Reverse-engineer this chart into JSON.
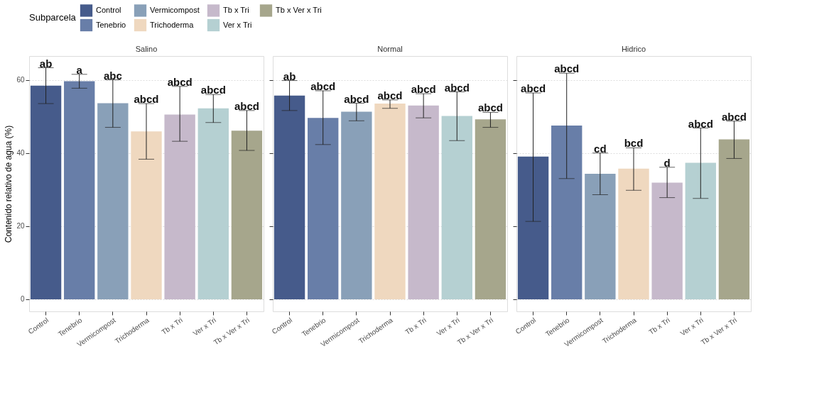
{
  "chart_data": [
    {
      "type": "bar",
      "title": "Salino",
      "ylabel": "Contenido relativo de agua (%)",
      "legend_title": "Subparcela",
      "legend": "top",
      "categories": [
        "Control",
        "Tenebrio",
        "Vermicompost",
        "Trichoderma",
        "Tb x Tri",
        "Ver x Tri",
        "Tb x Ver x Tri"
      ],
      "series": [
        {
          "name": "Control",
          "color": "#465b8b",
          "values": [
            58.4,
            null,
            null,
            null,
            null,
            null,
            null
          ],
          "errors": [
            [
              53.5,
              63.3
            ],
            null,
            null,
            null,
            null,
            null,
            null
          ]
        },
        {
          "name": "Tenebrio",
          "color": "#687ea8",
          "values": [
            null,
            59.6,
            null,
            null,
            null,
            null,
            null
          ],
          "errors": [
            null,
            [
              57.7,
              61.5
            ],
            null,
            null,
            null,
            null,
            null
          ]
        },
        {
          "name": "Vermicompost",
          "color": "#89a0b8",
          "values": [
            null,
            null,
            53.6,
            null,
            null,
            null,
            null
          ],
          "errors": [
            null,
            null,
            [
              47.0,
              60.0
            ],
            null,
            null,
            null,
            null
          ]
        },
        {
          "name": "Trichoderma",
          "color": "#efd8bf",
          "values": [
            null,
            null,
            null,
            45.9,
            null,
            null,
            null
          ],
          "errors": [
            null,
            null,
            null,
            [
              38.3,
              53.5
            ],
            null,
            null,
            null
          ]
        },
        {
          "name": "Tb x Tri",
          "color": "#c6b9cb",
          "values": [
            null,
            null,
            null,
            null,
            50.5,
            null,
            null
          ],
          "errors": [
            null,
            null,
            null,
            null,
            [
              43.2,
              58.2
            ],
            null,
            null
          ]
        },
        {
          "name": "Ver x Tri",
          "color": "#b5d0d2",
          "values": [
            null,
            null,
            null,
            null,
            null,
            52.2,
            null
          ],
          "errors": [
            null,
            null,
            null,
            null,
            null,
            [
              48.3,
              56.0
            ],
            null
          ]
        },
        {
          "name": "Tb x Ver x Tri",
          "color": "#a6a68c",
          "values": [
            null,
            null,
            null,
            null,
            null,
            null,
            46.1
          ],
          "errors": [
            null,
            null,
            null,
            null,
            null,
            null,
            [
              40.7,
              51.6
            ]
          ]
        }
      ],
      "annotations": [
        {
          "text": "ab",
          "x": "Control",
          "y": 63.3
        },
        {
          "text": "a",
          "x": "Tenebrio",
          "y": 61.5
        },
        {
          "text": "abc",
          "x": "Vermicompost",
          "y": 60.0
        },
        {
          "text": "abcd",
          "x": "Trichoderma",
          "y": 53.5
        },
        {
          "text": "abcd",
          "x": "Tb x Tri",
          "y": 58.2
        },
        {
          "text": "abcd",
          "x": "Ver x Tri",
          "y": 56.0
        },
        {
          "text": "abcd",
          "x": "Tb x Ver x Tri",
          "y": 51.6
        }
      ],
      "ylim": [
        -3.3,
        66.5
      ],
      "yticks": [
        0,
        20,
        40,
        60
      ],
      "grid": "y"
    },
    {
      "type": "bar",
      "title": "Normal",
      "tick_labels": "x",
      "legend": "top",
      "categories": [
        "Control",
        "Tenebrio",
        "Vermicompost",
        "Trichoderma",
        "Tb x Tri",
        "Ver x Tri",
        "Tb x Ver x Tri"
      ],
      "series": [
        {
          "name": "Control",
          "color": "#465b8b",
          "values": [
            55.7,
            null,
            null,
            null,
            null,
            null,
            null
          ],
          "errors": [
            [
              51.6,
              59.8
            ],
            null,
            null,
            null,
            null,
            null,
            null
          ]
        },
        {
          "name": "Tenebrio",
          "color": "#687ea8",
          "values": [
            null,
            49.6,
            null,
            null,
            null,
            null,
            null
          ],
          "errors": [
            null,
            [
              42.3,
              57.0
            ],
            null,
            null,
            null,
            null,
            null
          ]
        },
        {
          "name": "Vermicompost",
          "color": "#89a0b8",
          "values": [
            null,
            null,
            51.3,
            null,
            null,
            null,
            null
          ],
          "errors": [
            null,
            null,
            [
              48.8,
              53.6
            ],
            null,
            null,
            null,
            null
          ]
        },
        {
          "name": "Trichoderma",
          "color": "#efd8bf",
          "values": [
            null,
            null,
            null,
            53.5,
            null,
            null,
            null
          ],
          "errors": [
            null,
            null,
            null,
            [
              52.2,
              54.5
            ],
            null,
            null,
            null
          ]
        },
        {
          "name": "Tb x Tri",
          "color": "#c6b9cb",
          "values": [
            null,
            null,
            null,
            null,
            53.0,
            null,
            null
          ],
          "errors": [
            null,
            null,
            null,
            null,
            [
              49.6,
              56.2
            ],
            null,
            null
          ]
        },
        {
          "name": "Ver x Tri",
          "color": "#b5d0d2",
          "values": [
            null,
            null,
            null,
            null,
            null,
            50.1,
            null
          ],
          "errors": [
            null,
            null,
            null,
            null,
            null,
            [
              43.4,
              56.7
            ],
            null
          ]
        },
        {
          "name": "Tb x Ver x Tri",
          "color": "#a6a68c",
          "values": [
            null,
            null,
            null,
            null,
            null,
            null,
            49.2
          ],
          "errors": [
            null,
            null,
            null,
            null,
            null,
            null,
            [
              47.0,
              51.1
            ]
          ]
        }
      ],
      "annotations": [
        {
          "text": "ab",
          "x": "Control",
          "y": 59.8
        },
        {
          "text": "abcd",
          "x": "Tenebrio",
          "y": 57.0
        },
        {
          "text": "abcd",
          "x": "Vermicompost",
          "y": 53.6
        },
        {
          "text": "abcd",
          "x": "Trichoderma",
          "y": 54.5
        },
        {
          "text": "abcd",
          "x": "Tb x Tri",
          "y": 56.2
        },
        {
          "text": "abcd",
          "x": "Ver x Tri",
          "y": 56.7
        },
        {
          "text": "abcd",
          "x": "Tb x Ver x Tri",
          "y": 51.1
        }
      ],
      "ylim": [
        -3.3,
        66.5
      ],
      "yticks": [
        0,
        20,
        40,
        60
      ],
      "grid": "y"
    },
    {
      "type": "bar",
      "title": "Hidrico",
      "tick_labels": "x",
      "legend": "top",
      "categories": [
        "Control",
        "Tenebrio",
        "Vermicompost",
        "Trichoderma",
        "Tb x Tri",
        "Ver x Tri",
        "Tb x Ver x Tri"
      ],
      "series": [
        {
          "name": "Control",
          "color": "#465b8b",
          "values": [
            39.0,
            null,
            null,
            null,
            null,
            null,
            null
          ],
          "errors": [
            [
              21.3,
              56.4
            ],
            null,
            null,
            null,
            null,
            null,
            null
          ]
        },
        {
          "name": "Tenebrio",
          "color": "#687ea8",
          "values": [
            null,
            47.5,
            null,
            null,
            null,
            null,
            null
          ],
          "errors": [
            null,
            [
              33.0,
              61.8
            ],
            null,
            null,
            null,
            null,
            null
          ]
        },
        {
          "name": "Vermicompost",
          "color": "#89a0b8",
          "values": [
            null,
            null,
            34.3,
            null,
            null,
            null,
            null
          ],
          "errors": [
            null,
            null,
            [
              28.6,
              40.0
            ],
            null,
            null,
            null,
            null
          ]
        },
        {
          "name": "Trichoderma",
          "color": "#efd8bf",
          "values": [
            null,
            null,
            null,
            35.7,
            null,
            null,
            null
          ],
          "errors": [
            null,
            null,
            null,
            [
              29.8,
              41.4
            ],
            null,
            null,
            null
          ]
        },
        {
          "name": "Tb x Tri",
          "color": "#c6b9cb",
          "values": [
            null,
            null,
            null,
            null,
            31.9,
            null,
            null
          ],
          "errors": [
            null,
            null,
            null,
            null,
            [
              27.8,
              36.1
            ],
            null,
            null
          ]
        },
        {
          "name": "Ver x Tri",
          "color": "#b5d0d2",
          "values": [
            null,
            null,
            null,
            null,
            null,
            37.3,
            null
          ],
          "errors": [
            null,
            null,
            null,
            null,
            null,
            [
              27.6,
              46.8
            ],
            null
          ]
        },
        {
          "name": "Tb x Ver x Tri",
          "color": "#a6a68c",
          "values": [
            null,
            null,
            null,
            null,
            null,
            null,
            43.7
          ],
          "errors": [
            null,
            null,
            null,
            null,
            null,
            null,
            [
              38.5,
              48.7
            ]
          ]
        }
      ],
      "annotations": [
        {
          "text": "abcd",
          "x": "Control",
          "y": 56.4
        },
        {
          "text": "abcd",
          "x": "Tenebrio",
          "y": 61.8
        },
        {
          "text": "cd",
          "x": "Vermicompost",
          "y": 40.0
        },
        {
          "text": "bcd",
          "x": "Trichoderma",
          "y": 41.4
        },
        {
          "text": "d",
          "x": "Tb x Tri",
          "y": 36.1
        },
        {
          "text": "abcd",
          "x": "Ver x Tri",
          "y": 46.8
        },
        {
          "text": "abcd",
          "x": "Tb x Ver x Tri",
          "y": 48.7
        }
      ],
      "ylim": [
        -3.3,
        66.5
      ],
      "yticks": [
        0,
        20,
        40,
        60
      ],
      "grid": "y"
    }
  ]
}
